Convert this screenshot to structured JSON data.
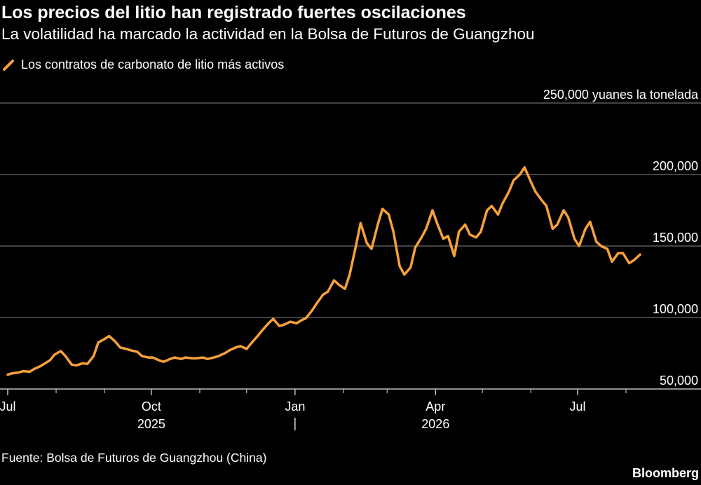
{
  "header": {
    "title": "Los precios del litio han registrado fuertes oscilaciones",
    "subtitle": "La volatilidad ha marcado la actividad en la Bolsa de Futuros de Guangzhou"
  },
  "footer": {
    "source": "Fuente: Bolsa de Futuros de Guangzhou (China)",
    "brand": "Bloomberg"
  },
  "colors": {
    "background": "#000000",
    "line": "#f7a13b",
    "grid": "#5a5a5a",
    "text": "#ffffff"
  },
  "chart_data": {
    "type": "line",
    "title": "Los precios del litio han registrado fuertes oscilaciones",
    "subtitle": "La volatilidad ha marcado la actividad en la Bolsa de Futuros de Guangzhou",
    "y_unit_label": "250,000 yuanes la tonelada",
    "ylim": [
      50000,
      250000
    ],
    "y_ticks": [
      {
        "value": 50000,
        "label": "50,000"
      },
      {
        "value": 100000,
        "label": "100,000"
      },
      {
        "value": 150000,
        "label": "150,000"
      },
      {
        "value": 200000,
        "label": "200,000"
      },
      {
        "value": 250000,
        "label": "250,000 yuanes la tonelada"
      }
    ],
    "xlim": [
      "2025-07-01",
      "2026-08-31"
    ],
    "x_tick_labels": [
      {
        "date": "2025-07-01",
        "label": "Jul"
      },
      {
        "date": "2025-10-01",
        "label": "Oct"
      },
      {
        "date": "2026-01-01",
        "label": "Jan"
      },
      {
        "date": "2026-04-01",
        "label": "Apr"
      },
      {
        "date": "2026-07-01",
        "label": "Jul"
      }
    ],
    "minor_x_ticks": [
      "2025-08-01",
      "2025-09-01",
      "2025-11-01",
      "2025-12-01",
      "2026-02-01",
      "2026-03-01",
      "2026-05-01",
      "2026-06-01",
      "2026-08-01"
    ],
    "year_labels": [
      {
        "date": "2025-10-01",
        "label": "2025"
      },
      {
        "date": "2026-04-01",
        "label": "2026"
      }
    ],
    "year_divider": "2026-01-01",
    "grid": true,
    "legend": "top-left",
    "series": [
      {
        "name": "Los contratos de carbonato de litio más activos",
        "points": [
          [
            "2025-07-01",
            60000
          ],
          [
            "2025-07-04",
            61000
          ],
          [
            "2025-07-08",
            61500
          ],
          [
            "2025-07-11",
            62500
          ],
          [
            "2025-07-15",
            62000
          ],
          [
            "2025-07-18",
            64000
          ],
          [
            "2025-07-22",
            66000
          ],
          [
            "2025-07-25",
            68000
          ],
          [
            "2025-07-28",
            70000
          ],
          [
            "2025-07-31",
            74000
          ],
          [
            "2025-08-04",
            76500
          ],
          [
            "2025-08-07",
            73000
          ],
          [
            "2025-08-11",
            67000
          ],
          [
            "2025-08-14",
            66500
          ],
          [
            "2025-08-18",
            68000
          ],
          [
            "2025-08-21",
            67500
          ],
          [
            "2025-08-25",
            73000
          ],
          [
            "2025-08-28",
            82500
          ],
          [
            "2025-09-01",
            85000
          ],
          [
            "2025-09-04",
            87000
          ],
          [
            "2025-09-08",
            83000
          ],
          [
            "2025-09-11",
            79000
          ],
          [
            "2025-09-15",
            78000
          ],
          [
            "2025-09-18",
            77000
          ],
          [
            "2025-09-22",
            76000
          ],
          [
            "2025-09-25",
            73000
          ],
          [
            "2025-09-29",
            72000
          ],
          [
            "2025-10-02",
            72000
          ],
          [
            "2025-10-06",
            70000
          ],
          [
            "2025-10-09",
            69000
          ],
          [
            "2025-10-13",
            71000
          ],
          [
            "2025-10-16",
            72000
          ],
          [
            "2025-10-20",
            71000
          ],
          [
            "2025-10-23",
            72000
          ],
          [
            "2025-10-27",
            71500
          ],
          [
            "2025-10-30",
            71500
          ],
          [
            "2025-11-03",
            72000
          ],
          [
            "2025-11-06",
            71000
          ],
          [
            "2025-11-10",
            72000
          ],
          [
            "2025-11-13",
            73000
          ],
          [
            "2025-11-17",
            75000
          ],
          [
            "2025-11-20",
            77000
          ],
          [
            "2025-11-24",
            79000
          ],
          [
            "2025-11-27",
            80000
          ],
          [
            "2025-12-01",
            78000
          ],
          [
            "2025-12-04",
            82000
          ],
          [
            "2025-12-08",
            87000
          ],
          [
            "2025-12-11",
            91000
          ],
          [
            "2025-12-15",
            96000
          ],
          [
            "2025-12-18",
            99000
          ],
          [
            "2025-12-22",
            94000
          ],
          [
            "2025-12-25",
            95000
          ],
          [
            "2025-12-29",
            97000
          ],
          [
            "2026-01-02",
            96000
          ],
          [
            "2026-01-05",
            98000
          ],
          [
            "2026-01-08",
            99500
          ],
          [
            "2026-01-12",
            105000
          ],
          [
            "2026-01-15",
            110000
          ],
          [
            "2026-01-19",
            116000
          ],
          [
            "2026-01-22",
            118000
          ],
          [
            "2026-01-26",
            126000
          ],
          [
            "2026-01-29",
            123000
          ],
          [
            "2026-02-02",
            120000
          ],
          [
            "2026-02-05",
            130000
          ],
          [
            "2026-02-09",
            150000
          ],
          [
            "2026-02-12",
            166000
          ],
          [
            "2026-02-16",
            152000
          ],
          [
            "2026-02-19",
            148000
          ],
          [
            "2026-02-23",
            165000
          ],
          [
            "2026-02-26",
            176000
          ],
          [
            "2026-03-02",
            172000
          ],
          [
            "2026-03-05",
            160000
          ],
          [
            "2026-03-09",
            136000
          ],
          [
            "2026-03-12",
            130000
          ],
          [
            "2026-03-16",
            135000
          ],
          [
            "2026-03-19",
            149000
          ],
          [
            "2026-03-23",
            156000
          ],
          [
            "2026-03-26",
            162000
          ],
          [
            "2026-03-30",
            175000
          ],
          [
            "2026-04-02",
            166000
          ],
          [
            "2026-04-06",
            155000
          ],
          [
            "2026-04-09",
            157000
          ],
          [
            "2026-04-13",
            143000
          ],
          [
            "2026-04-16",
            160000
          ],
          [
            "2026-04-20",
            165000
          ],
          [
            "2026-04-23",
            158000
          ],
          [
            "2026-04-27",
            156000
          ],
          [
            "2026-04-30",
            160000
          ],
          [
            "2026-05-04",
            175000
          ],
          [
            "2026-05-07",
            178000
          ],
          [
            "2026-05-11",
            172000
          ],
          [
            "2026-05-14",
            180000
          ],
          [
            "2026-05-18",
            188000
          ],
          [
            "2026-05-21",
            196000
          ],
          [
            "2026-05-25",
            200000
          ],
          [
            "2026-05-28",
            205000
          ],
          [
            "2026-06-01",
            195000
          ],
          [
            "2026-06-04",
            188000
          ],
          [
            "2026-06-08",
            182000
          ],
          [
            "2026-06-11",
            178000
          ],
          [
            "2026-06-15",
            162000
          ],
          [
            "2026-06-18",
            165000
          ],
          [
            "2026-06-22",
            175000
          ],
          [
            "2026-06-25",
            170000
          ],
          [
            "2026-06-29",
            155000
          ],
          [
            "2026-07-02",
            150000
          ],
          [
            "2026-07-06",
            162000
          ],
          [
            "2026-07-09",
            167000
          ],
          [
            "2026-07-13",
            153000
          ],
          [
            "2026-07-16",
            150000
          ],
          [
            "2026-07-20",
            148000
          ],
          [
            "2026-07-23",
            139000
          ],
          [
            "2026-07-27",
            145000
          ],
          [
            "2026-07-30",
            145000
          ],
          [
            "2026-08-03",
            138000
          ],
          [
            "2026-08-06",
            140000
          ],
          [
            "2026-08-10",
            144000
          ]
        ]
      }
    ]
  }
}
